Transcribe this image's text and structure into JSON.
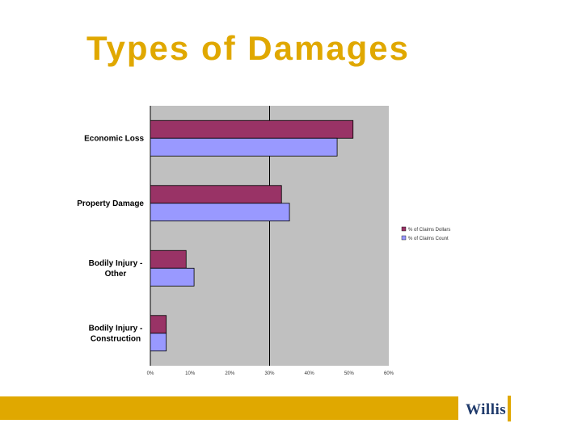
{
  "slide": {
    "title": "Types of Damages",
    "logo_text": "Willis"
  },
  "colors": {
    "title": "#E0A800",
    "footer": "#E0A800",
    "logo_text": "#1F3A6B",
    "plot_bg": "#C0C0C0",
    "dollars": "#993366",
    "count": "#9999FF"
  },
  "chart_data": {
    "type": "bar",
    "orientation": "horizontal",
    "categories": [
      [
        "Economic Loss"
      ],
      [
        "Property Damage"
      ],
      [
        "Bodily Injury -",
        "Other"
      ],
      [
        "Bodily Injury -",
        "Construction"
      ]
    ],
    "series": [
      {
        "name": "% of Claims Dollars",
        "values": [
          51,
          33,
          9,
          4
        ]
      },
      {
        "name": "% of Claims Count",
        "values": [
          47,
          35,
          11,
          4
        ]
      }
    ],
    "x_ticks": [
      "0%",
      "10%",
      "20%",
      "30%",
      "40%",
      "50%",
      "60%"
    ],
    "xlim": [
      0,
      60
    ],
    "gridlines_at": [
      30
    ],
    "legend_position": "right"
  }
}
